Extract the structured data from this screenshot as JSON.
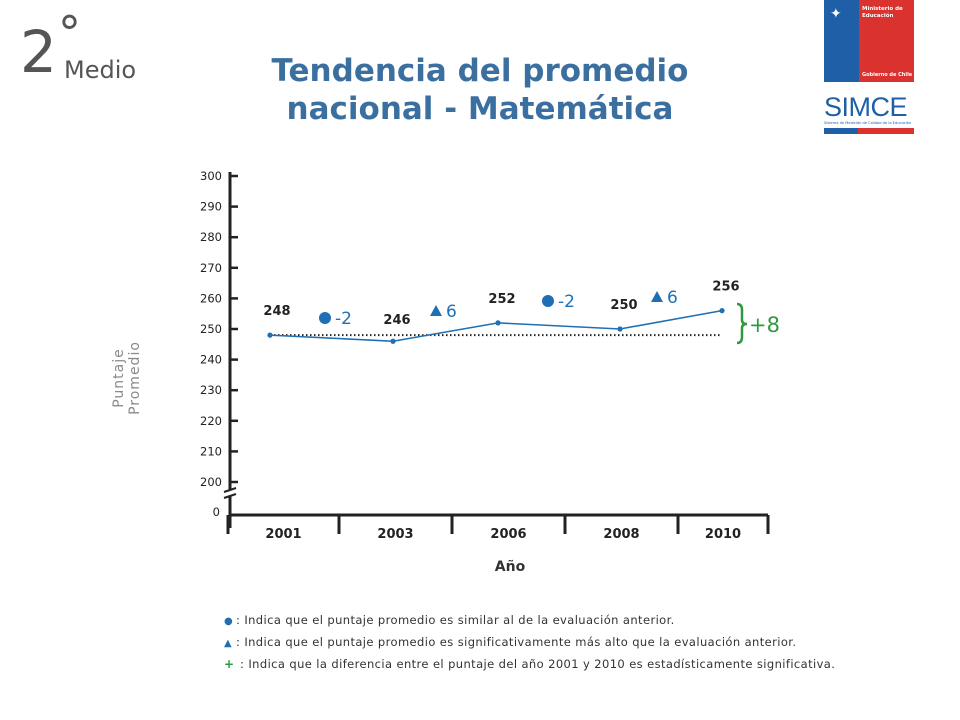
{
  "grade": {
    "number": "2",
    "degree": "°",
    "label": "Medio"
  },
  "title": {
    "line1": "Tendencia del promedio",
    "line2": "nacional - Matemática"
  },
  "logo": {
    "ministry": "Ministerio de Educación",
    "government": "Gobierno de Chile",
    "brand": "SIMCE",
    "brand_sub": "Sistema de Medición de Calidad de la Educación"
  },
  "chart_data": {
    "type": "line",
    "xlabel": "Año",
    "ylabel": "Puntaje Promedio",
    "ylim": [
      200,
      300
    ],
    "yticks": [
      "300",
      "290",
      "280",
      "270",
      "260",
      "250",
      "240",
      "230",
      "220",
      "210",
      "200"
    ],
    "ybreak_tick": "0",
    "x": [
      "2001",
      "2003",
      "2006",
      "2008",
      "2010"
    ],
    "series": [
      {
        "values": [
          248,
          246,
          252,
          250,
          256
        ]
      }
    ],
    "point_labels": [
      "248",
      "246",
      "252",
      "250",
      "256"
    ],
    "changes": [
      {
        "symbol": "circle",
        "text": "-2"
      },
      {
        "symbol": "triangle",
        "text": "6"
      },
      {
        "symbol": "circle",
        "text": "-2"
      },
      {
        "symbol": "triangle",
        "text": "6"
      }
    ],
    "reference_line": 248,
    "total_change": "+8",
    "colors": {
      "line": "#1f6fb5",
      "reference": "#222222",
      "total": "#2e9a3e",
      "axis": "#222222"
    }
  },
  "legend": [
    {
      "symbol": "circle",
      "text": ": Indica  que el  puntaje  promedio  es similar  al de la evaluación  anterior."
    },
    {
      "symbol": "triangle",
      "text": ": Indica  que el  puntaje  promedio  es significativamente  más alto  que la evaluación  anterior."
    },
    {
      "symbol": "plus",
      "text": " :  Indica  que la diferencia  entre el puntaje  del año 2001  y 2010  es estadísticamente  significativa."
    }
  ]
}
